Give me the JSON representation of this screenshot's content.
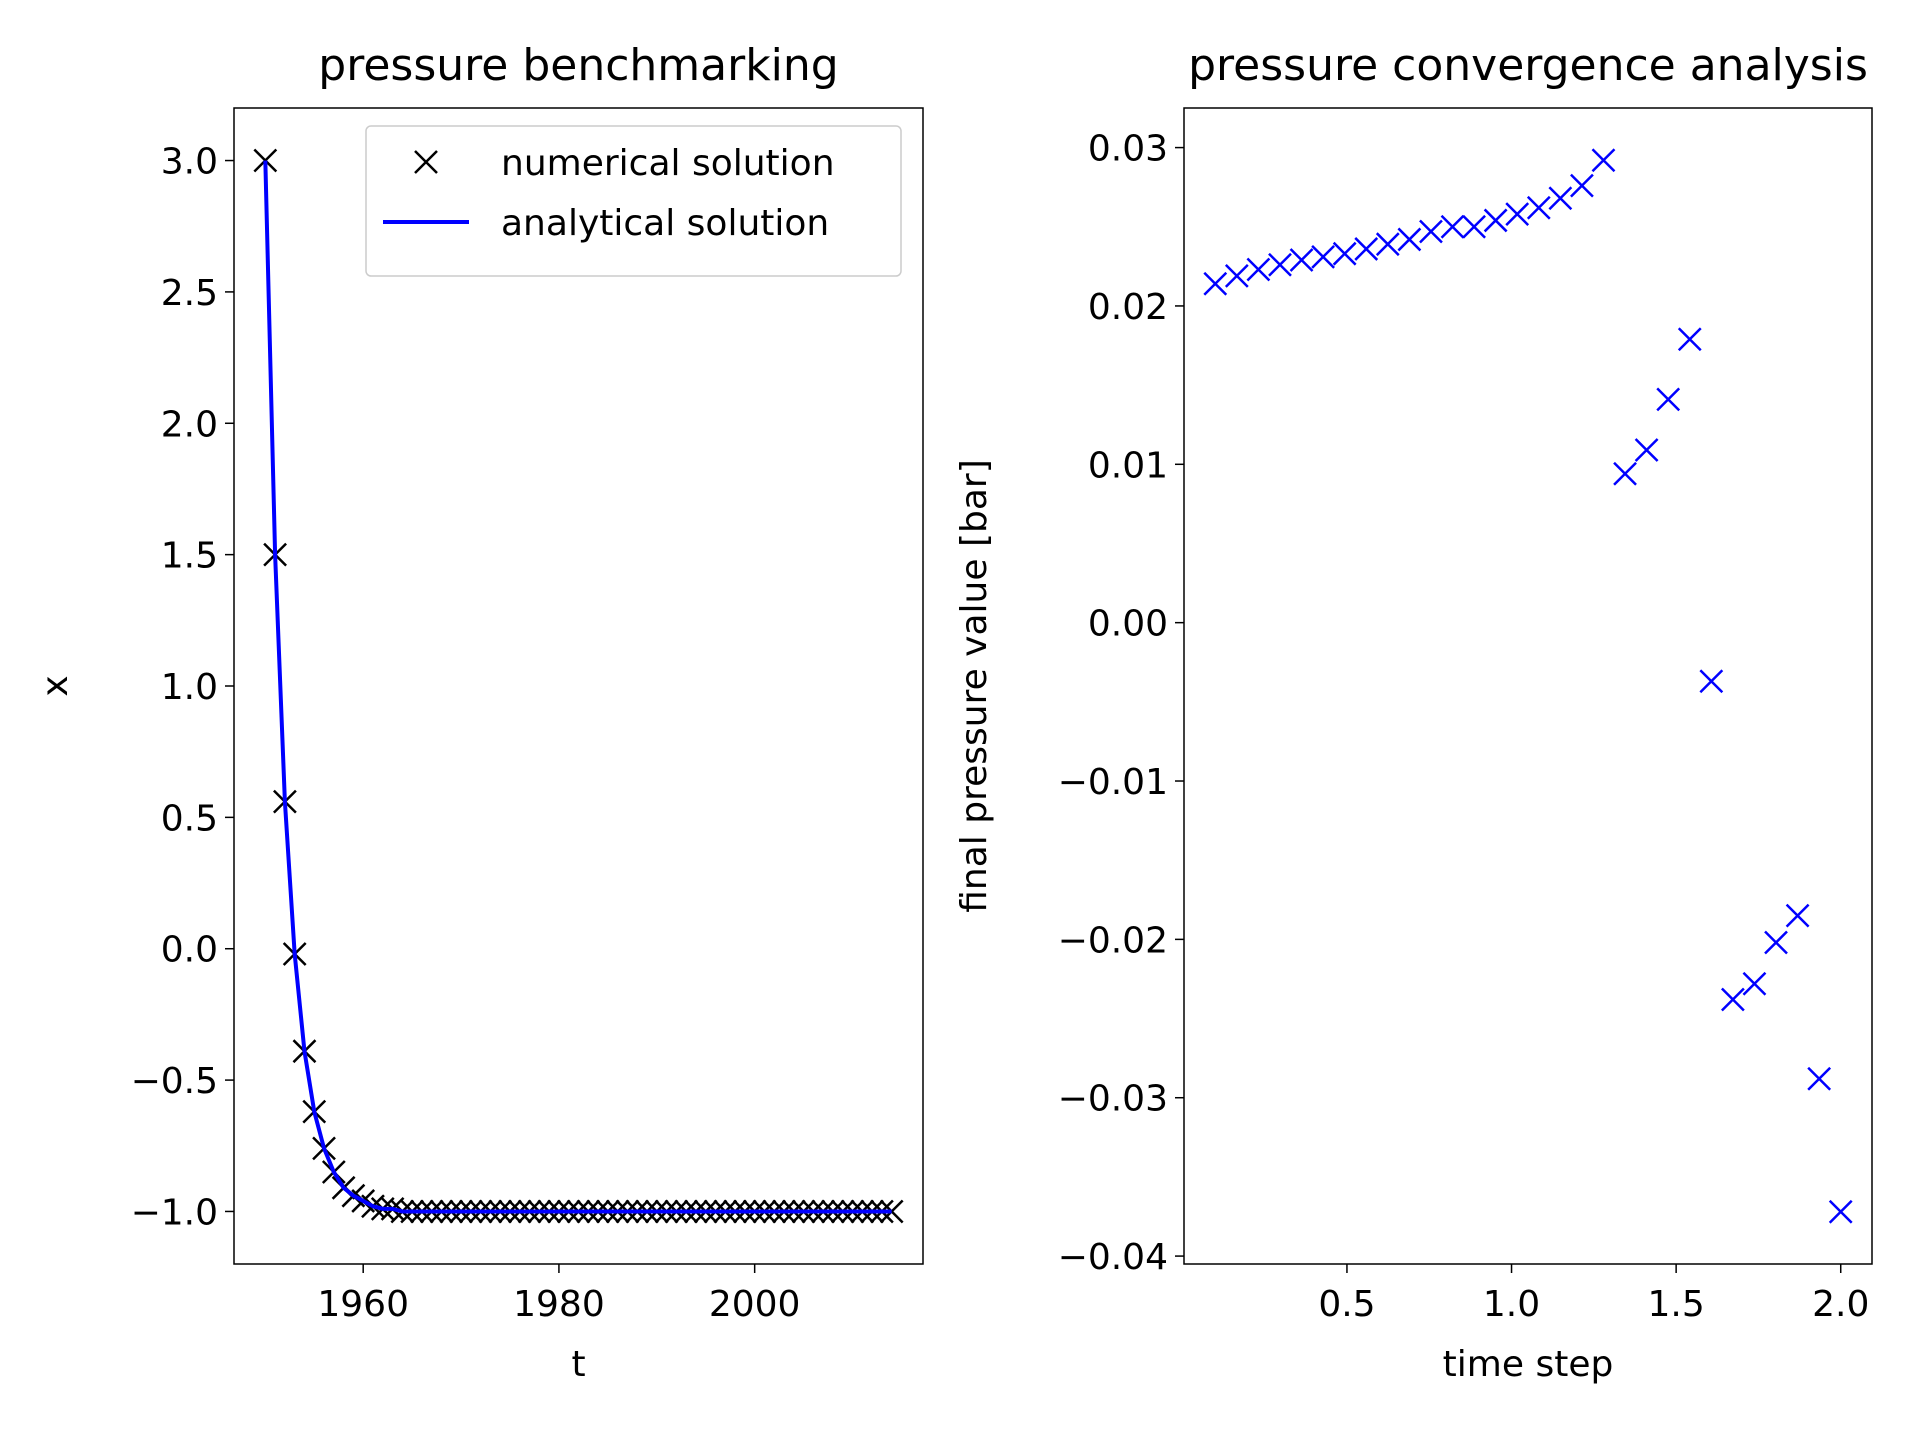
{
  "chart_data": [
    {
      "type": "line",
      "title": "pressure benchmarking",
      "xlabel": "t",
      "ylabel": "x",
      "x": [
        1950,
        1951,
        1952,
        1953,
        1954,
        1955,
        1956,
        1957,
        1958,
        1959,
        1960,
        1961,
        1962,
        1963,
        1964,
        1965,
        1966,
        1967,
        1968,
        1969,
        1970,
        1971,
        1972,
        1973,
        1974,
        1975,
        1976,
        1977,
        1978,
        1979,
        1980,
        1981,
        1982,
        1983,
        1984,
        1985,
        1986,
        1987,
        1988,
        1989,
        1990,
        1991,
        1992,
        1993,
        1994,
        1995,
        1996,
        1997,
        1998,
        1999,
        2000,
        2001,
        2002,
        2003,
        2004,
        2005,
        2006,
        2007,
        2008,
        2009,
        2010,
        2011,
        2012,
        2013,
        2014
      ],
      "series": [
        {
          "name": "numerical solution",
          "color": "#000000",
          "style": "marker",
          "values": [
            3.0,
            1.5,
            0.56,
            -0.02,
            -0.39,
            -0.62,
            -0.76,
            -0.85,
            -0.91,
            -0.94,
            -0.96,
            -0.98,
            -0.99,
            -0.99,
            -1,
            -1,
            -1,
            -1,
            -1,
            -1,
            -1,
            -1,
            -1,
            -1,
            -1,
            -1,
            -1,
            -1,
            -1,
            -1,
            -1,
            -1,
            -1,
            -1,
            -1,
            -1,
            -1,
            -1,
            -1,
            -1,
            -1,
            -1,
            -1,
            -1,
            -1,
            -1,
            -1,
            -1,
            -1,
            -1,
            -1,
            -1,
            -1,
            -1,
            -1,
            -1,
            -1,
            -1,
            -1,
            -1,
            -1,
            -1,
            -1,
            -1,
            -1
          ]
        },
        {
          "name": "analytical solution",
          "color": "#0000ff",
          "style": "line",
          "values": [
            3.0,
            1.5,
            0.56,
            -0.02,
            -0.39,
            -0.62,
            -0.76,
            -0.85,
            -0.91,
            -0.94,
            -0.96,
            -0.98,
            -0.99,
            -0.99,
            -1,
            -1,
            -1,
            -1,
            -1,
            -1,
            -1,
            -1,
            -1,
            -1,
            -1,
            -1,
            -1,
            -1,
            -1,
            -1,
            -1,
            -1,
            -1,
            -1,
            -1,
            -1,
            -1,
            -1,
            -1,
            -1,
            -1,
            -1,
            -1,
            -1,
            -1,
            -1,
            -1,
            -1,
            -1,
            -1,
            -1,
            -1,
            -1,
            -1,
            -1,
            -1,
            -1,
            -1,
            -1,
            -1,
            -1,
            -1,
            -1,
            -1,
            -1
          ]
        }
      ],
      "legend": "upper right",
      "xlim": [
        1946.8,
        2017.2
      ],
      "xticks": [
        1960,
        1980,
        2000
      ],
      "ylim": [
        -1.2,
        3.2
      ],
      "yticks": [
        {
          "value": -1.0,
          "label": "−1.0"
        },
        {
          "value": -0.5,
          "label": "−0.5"
        },
        {
          "value": 0.0,
          "label": "0.0"
        },
        {
          "value": 0.5,
          "label": "0.5"
        },
        {
          "value": 1.0,
          "label": "1.0"
        },
        {
          "value": 1.5,
          "label": "1.5"
        },
        {
          "value": 2.0,
          "label": "2.0"
        },
        {
          "value": 2.5,
          "label": "2.5"
        },
        {
          "value": 3.0,
          "label": "3.0"
        }
      ]
    },
    {
      "type": "scatter",
      "title": "pressure convergence analysis",
      "xlabel": "time step",
      "ylabel": "final pressure value [bar]",
      "x": [
        0.1,
        0.1655,
        0.231,
        0.2966,
        0.3621,
        0.4276,
        0.4931,
        0.5586,
        0.6241,
        0.6897,
        0.7552,
        0.8207,
        0.8862,
        0.9517,
        1.0172,
        1.0828,
        1.1483,
        1.2138,
        1.2793,
        1.3448,
        1.4103,
        1.4759,
        1.5414,
        1.6069,
        1.6724,
        1.7379,
        1.8034,
        1.869,
        1.9345,
        2.0
      ],
      "series": [
        {
          "color": "#0000ff",
          "style": "marker",
          "values": [
            0.0214,
            0.0219,
            0.0223,
            0.0226,
            0.0229,
            0.0231,
            0.0233,
            0.0236,
            0.0239,
            0.0242,
            0.0247,
            0.025,
            0.025,
            0.0254,
            0.0258,
            0.0262,
            0.0268,
            0.0276,
            0.0292,
            0.0094,
            0.0109,
            0.0141,
            0.0179,
            -0.0037,
            -0.0238,
            -0.0228,
            -0.0202,
            -0.0185,
            -0.0288,
            -0.0372
          ]
        }
      ],
      "xlim": [
        0.005,
        2.095
      ],
      "xticks": [
        0.5,
        {
          "value": 1.0,
          "label": "1.0"
        },
        1.5,
        {
          "value": 2.0,
          "label": "2.0"
        }
      ],
      "ylim": [
        -0.0405,
        0.0325
      ],
      "yticks": [
        {
          "value": -0.04,
          "label": "−0.04"
        },
        {
          "value": -0.03,
          "label": "−0.03"
        },
        {
          "value": -0.02,
          "label": "−0.02"
        },
        {
          "value": -0.01,
          "label": "−0.01"
        },
        {
          "value": 0.0,
          "label": "0.00"
        },
        0.01,
        0.02,
        0.03
      ]
    }
  ]
}
